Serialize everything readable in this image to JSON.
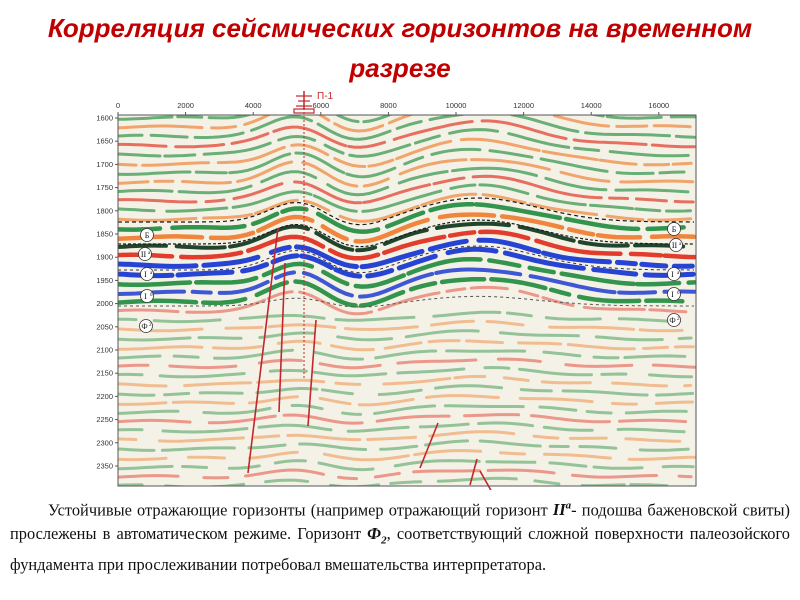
{
  "title": "Корреляция сейсмических горизонтов на временном разрезе",
  "well": {
    "label": "П-1"
  },
  "x_axis": {
    "ticks": [
      "0",
      "2000",
      "4000",
      "6000",
      "8000",
      "10000",
      "12000",
      "14000",
      "16000"
    ]
  },
  "y_axis": {
    "ticks": [
      "1600",
      "1650",
      "1700",
      "1750",
      "1800",
      "1850",
      "1900",
      "1950",
      "2000",
      "2050",
      "2100",
      "2150",
      "2200",
      "2250",
      "2300",
      "2350"
    ]
  },
  "horizons": {
    "B": {
      "letter": "Б",
      "sup": ""
    },
    "IIa": {
      "letter": "II",
      "sup": "а"
    },
    "Ia": {
      "letter": "I",
      "sup": "а"
    },
    "Ib": {
      "letter": "I",
      "sup": "б"
    },
    "F2": {
      "letter": "Ф",
      "sup": "2"
    }
  },
  "caption": {
    "p1": "Устойчивые отражающие горизонты (например отражающий горизонт ",
    "h1_main": "II",
    "h1_sup": "а",
    "p2": "- подошва баженовской свиты) прослежены в автоматическом режиме. Горизонт ",
    "h2_main": "Ф",
    "h2_sub": "2",
    "p3": ", соответствующий сложной поверхности палеозойского фундамента при прослеживании потребовал вмешательства интерпретатора."
  },
  "colors": {
    "title": "#c00000",
    "fault": "#c0282c",
    "green": "#1e8a3c",
    "orange": "#f07a2a",
    "red": "#e02818",
    "blue": "#1030d0"
  }
}
